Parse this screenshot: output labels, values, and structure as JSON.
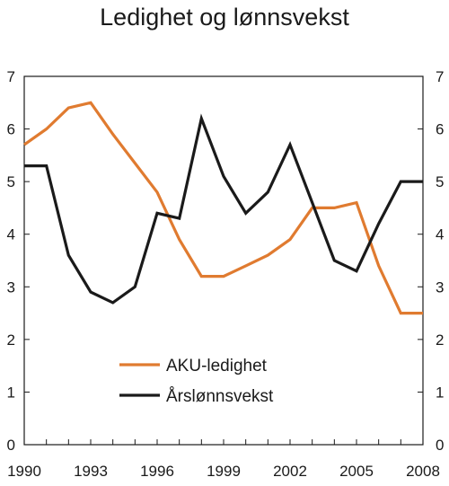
{
  "chart_data": {
    "type": "line",
    "title": "Ledighet og lønnsvekst",
    "xlabel": "",
    "ylabel": "",
    "x_ticks": [
      "1990",
      "1993",
      "1996",
      "1999",
      "2002",
      "2005",
      "2008"
    ],
    "y_ticks": [
      "0",
      "1",
      "2",
      "3",
      "4",
      "5",
      "6",
      "7"
    ],
    "xlim": [
      1990,
      2008
    ],
    "ylim": [
      0,
      7
    ],
    "y_right_ticks": [
      "0",
      "1",
      "2",
      "3",
      "4",
      "5",
      "6",
      "7"
    ],
    "grid": false,
    "legend_position": "bottom-center",
    "x": [
      1990,
      1991,
      1992,
      1993,
      1994,
      1995,
      1996,
      1997,
      1998,
      1999,
      2000,
      2001,
      2002,
      2003,
      2004,
      2005,
      2006,
      2007,
      2008
    ],
    "series": [
      {
        "name": "AKU-ledighet",
        "color": "#e07b30",
        "values": [
          5.7,
          6.0,
          6.4,
          6.5,
          5.9,
          5.35,
          4.8,
          3.9,
          3.2,
          3.2,
          3.4,
          3.6,
          3.9,
          4.5,
          4.5,
          4.6,
          3.4,
          2.5,
          2.5
        ]
      },
      {
        "name": "Årslønnsvekst",
        "color": "#1a1a1a",
        "values": [
          5.3,
          5.3,
          3.6,
          2.9,
          2.7,
          3.0,
          4.4,
          4.3,
          6.2,
          5.1,
          4.4,
          4.8,
          5.7,
          4.6,
          3.5,
          3.3,
          4.2,
          5.0,
          5.0
        ]
      }
    ]
  }
}
